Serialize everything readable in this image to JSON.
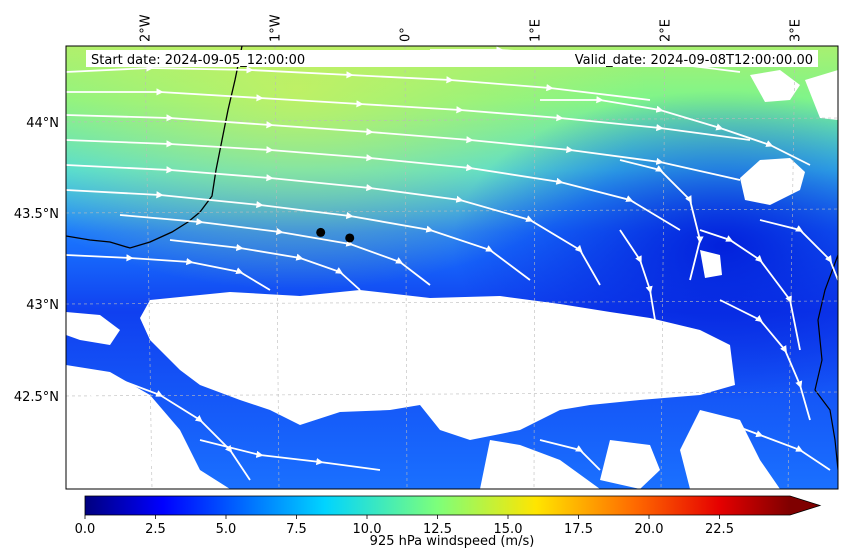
{
  "header": {
    "start_date": "Start date: 2024-09-05_12:00:00",
    "valid_date": "Valid_date: 2024-09-08T12:00:00.00"
  },
  "map": {
    "lon_labels": [
      "2°W",
      "1°W",
      "0°",
      "1°E",
      "2°E",
      "3°E"
    ],
    "lat_labels": [
      "44°N",
      "43.5°N",
      "43°N",
      "42.5°N"
    ],
    "lon_range": [
      -2.55,
      3.3
    ],
    "lat_range": [
      42.0,
      44.4
    ],
    "field_colormap": "jet",
    "background_mask_color": "#ffffff",
    "streamline_color": "#ffffff",
    "coastline_color": "#000000",
    "points": [
      {
        "lon": -0.62,
        "lat": 43.39
      },
      {
        "lon": -0.4,
        "lat": 43.36
      }
    ]
  },
  "colorbar": {
    "label": "925 hPa windspeed (m/s)",
    "ticks": [
      "0.0",
      "2.5",
      "5.0",
      "7.5",
      "10.0",
      "12.5",
      "15.0",
      "17.5",
      "20.0",
      "22.5"
    ],
    "min": 0,
    "max": 25,
    "extend": "max"
  }
}
